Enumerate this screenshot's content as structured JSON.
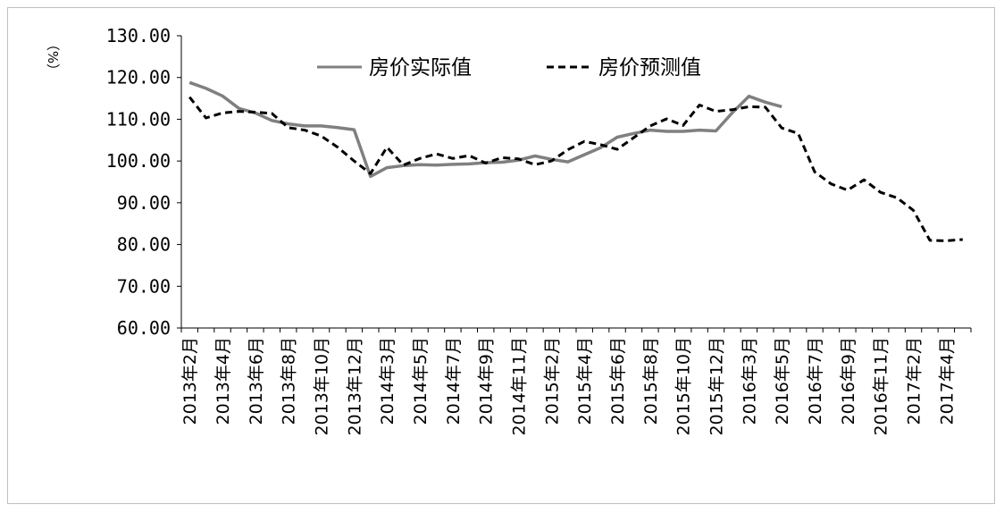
{
  "chart_data": {
    "type": "line",
    "title": "",
    "ylabel": "（%）",
    "xlabel": "",
    "ylim": [
      60,
      130
    ],
    "yticks": [
      60,
      70,
      80,
      90,
      100,
      110,
      120,
      130
    ],
    "ytick_labels": [
      "60.00",
      "70.00",
      "80.00",
      "90.00",
      "100.00",
      "110.00",
      "120.00",
      "130.00"
    ],
    "grid": false,
    "legend_position": "top",
    "categories": [
      "2013年2月",
      "2013年3月",
      "2013年4月",
      "2013年5月",
      "2013年6月",
      "2013年7月",
      "2013年8月",
      "2013年9月",
      "2013年10月",
      "2013年11月",
      "2013年12月",
      "2014年1月",
      "2014年3月",
      "2014年4月",
      "2014年5月",
      "2014年6月",
      "2014年7月",
      "2014年8月",
      "2014年9月",
      "2014年10月",
      "2014年11月",
      "2014年12月",
      "2015年2月",
      "2015年3月",
      "2015年4月",
      "2015年5月",
      "2015年6月",
      "2015年7月",
      "2015年8月",
      "2015年9月",
      "2015年10月",
      "2015年11月",
      "2015年12月",
      "2016年1月",
      "2016年3月",
      "2016年4月",
      "2016年5月",
      "2016年6月",
      "2016年7月",
      "2016年8月",
      "2016年9月",
      "2016年10月",
      "2016年11月",
      "2016年12月",
      "2017年2月",
      "2017年3月",
      "2017年4月",
      "2017年5月"
    ],
    "x_tick_labels_shown": [
      "2013年2月",
      "2013年4月",
      "2013年6月",
      "2013年8月",
      "2013年10月",
      "2013年12月",
      "2014年3月",
      "2014年5月",
      "2014年7月",
      "2014年9月",
      "2014年11月",
      "2015年2月",
      "2015年4月",
      "2015年6月",
      "2015年8月",
      "2015年10月",
      "2015年12月",
      "2016年3月",
      "2016年5月",
      "2016年7月",
      "2016年9月",
      "2016年11月",
      "2017年2月",
      "2017年4月"
    ],
    "series": [
      {
        "name": "房价实际值",
        "color": "#808080",
        "dash": "solid",
        "values": [
          118.8,
          117.4,
          115.6,
          112.6,
          111.5,
          109.7,
          108.9,
          108.4,
          108.4,
          108.0,
          107.5,
          96.3,
          98.4,
          98.9,
          99.1,
          99.0,
          99.2,
          99.3,
          99.6,
          99.7,
          100.2,
          101.2,
          100.4,
          99.8,
          101.5,
          103.2,
          105.7,
          106.6,
          107.4,
          107.1,
          107.1,
          107.4,
          107.2,
          111.6,
          115.5,
          114.1,
          113.0,
          null,
          null,
          null,
          null,
          null,
          null,
          null,
          null,
          null,
          null,
          null
        ]
      },
      {
        "name": "房价预测值",
        "color": "#000000",
        "dash": "dashed",
        "values": [
          115.3,
          110.3,
          111.5,
          111.9,
          111.7,
          111.4,
          108.0,
          107.4,
          106.0,
          103.3,
          100.0,
          97.0,
          103.3,
          99.0,
          100.6,
          101.7,
          100.6,
          101.3,
          99.5,
          100.8,
          100.5,
          99.1,
          100.0,
          102.7,
          104.7,
          103.9,
          102.8,
          105.6,
          108.4,
          110.1,
          108.5,
          113.4,
          111.9,
          112.3,
          113.0,
          112.9,
          107.9,
          106.6,
          97.4,
          94.5,
          93.0,
          95.5,
          92.5,
          91.2,
          88.2,
          81.0,
          80.9,
          81.2
        ]
      }
    ]
  }
}
